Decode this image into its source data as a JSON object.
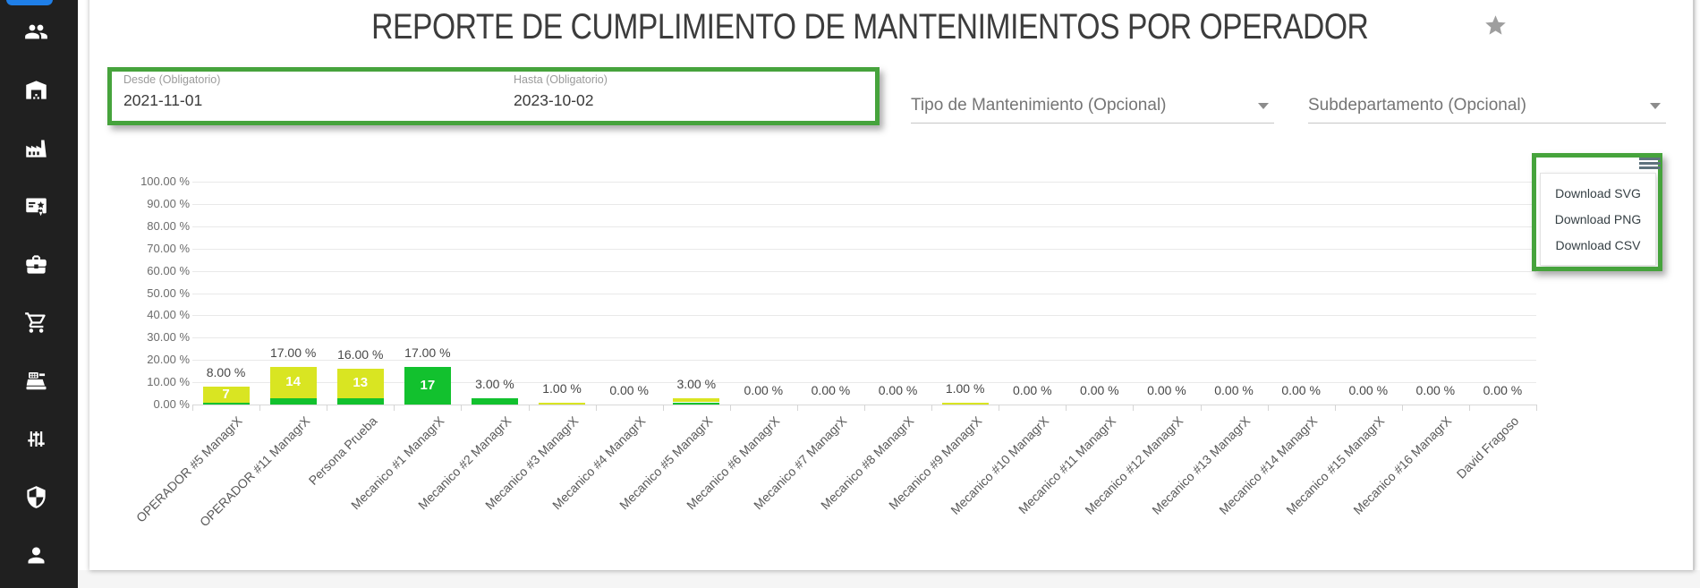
{
  "header": {
    "title": "REPORTE DE CUMPLIMIENTO DE MANTENIMIENTOS POR OPERADOR"
  },
  "sidebar": {
    "icons": [
      "people",
      "warehouse",
      "factory",
      "certificate",
      "briefcase",
      "shopping-cart",
      "cash-register",
      "sliders",
      "shield",
      "person"
    ]
  },
  "filters": {
    "desde": {
      "label": "Desde (Obligatorio)",
      "value": "2021-11-01"
    },
    "hasta": {
      "label": "Hasta (Obligatorio)",
      "value": "2023-10-02"
    },
    "tipo_mantenimiento": {
      "label": "Tipo de Mantenimiento (Opcional)"
    },
    "subdepartamento": {
      "label": "Subdepartamento (Opcional)"
    }
  },
  "chart_menu": {
    "items": [
      "Download SVG",
      "Download PNG",
      "Download CSV"
    ]
  },
  "chart_data": {
    "type": "bar",
    "stacked": true,
    "title": "",
    "xlabel": "",
    "ylabel": "",
    "ylim": [
      0,
      100
    ],
    "grid": true,
    "legend_position": "none",
    "xaxis_label_rotation": -45,
    "ytick_labels": [
      "100.00 %",
      "90.00 %",
      "80.00 %",
      "70.00 %",
      "60.00 %",
      "50.00 %",
      "40.00 %",
      "30.00 %",
      "20.00 %",
      "10.00 %",
      "0.00 %"
    ],
    "categories": [
      "OPERADOR #5 ManagrX",
      "OPERADOR #11 ManagrX",
      "Persona Prueba",
      "Mecanico #1 ManagrX",
      "Mecanico #2 ManagrX",
      "Mecanico #3 ManagrX",
      "Mecanico #4 ManagrX",
      "Mecanico #5 ManagrX",
      "Mecanico #6 ManagrX",
      "Mecanico #7 ManagrX",
      "Mecanico #8 ManagrX",
      "Mecanico #9 ManagrX",
      "Mecanico #10 ManagrX",
      "Mecanico #11 ManagrX",
      "Mecanico #12 ManagrX",
      "Mecanico #13 ManagrX",
      "Mecanico #14 ManagrX",
      "Mecanico #15 ManagrX",
      "Mecanico #16 ManagrX",
      "David Fragoso"
    ],
    "series": [
      {
        "name": "green",
        "color": "#12c12e",
        "values": [
          1,
          3,
          3,
          17,
          3,
          0,
          0,
          1,
          0,
          0,
          0,
          0,
          0,
          0,
          0,
          0,
          0,
          0,
          0,
          0
        ]
      },
      {
        "name": "yellow",
        "color": "#d9e522",
        "values": [
          7,
          14,
          13,
          0,
          0,
          1,
          0,
          2,
          0,
          0,
          0,
          1,
          0,
          0,
          0,
          0,
          0,
          0,
          0,
          0
        ]
      }
    ],
    "total_labels": [
      "8.00 %",
      "17.00 %",
      "16.00 %",
      "17.00 %",
      "3.00 %",
      "1.00 %",
      "0.00 %",
      "3.00 %",
      "0.00 %",
      "0.00 %",
      "0.00 %",
      "1.00 %",
      "0.00 %",
      "0.00 %",
      "0.00 %",
      "0.00 %",
      "0.00 %",
      "0.00 %",
      "0.00 %",
      "0.00 %"
    ],
    "bar_numbers": [
      "7",
      "14",
      "13",
      "17",
      "",
      "",
      "",
      "",
      "",
      "",
      "",
      "",
      "",
      "",
      "",
      "",
      "",
      "",
      "",
      ""
    ]
  },
  "colors": {
    "highlight_green": "#46a33c",
    "bar_green": "#12c12e",
    "bar_yellow": "#d9e522",
    "sidebar_bg": "#202020",
    "blue_pill": "#1f7fe8"
  }
}
